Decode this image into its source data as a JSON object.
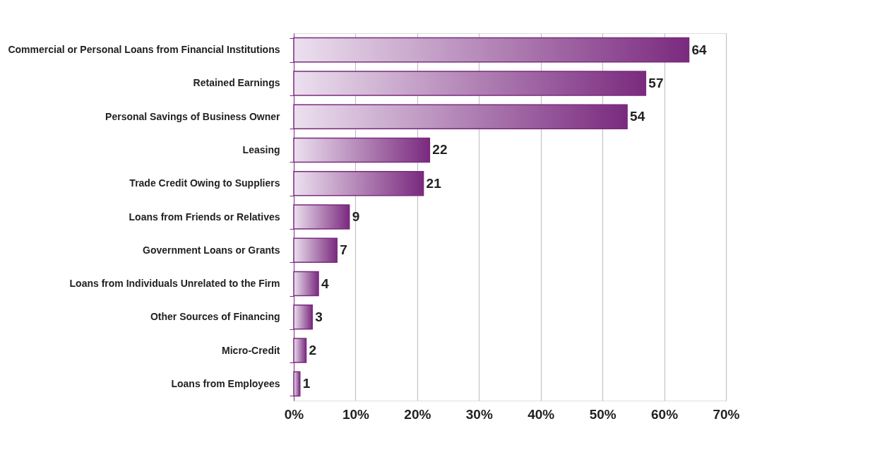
{
  "chart_data": {
    "type": "bar",
    "orientation": "horizontal",
    "categories": [
      "Commercial or Personal Loans from Financial Institutions",
      "Retained Earnings",
      "Personal Savings of Business Owner",
      "Leasing",
      "Trade Credit Owing to Suppliers",
      "Loans from Friends or Relatives",
      "Government Loans or Grants",
      "Loans from Individuals Unrelated to the Firm",
      "Other Sources of Financing",
      "Micro-Credit",
      "Loans from Employees"
    ],
    "values": [
      64,
      57,
      54,
      22,
      21,
      9,
      7,
      4,
      3,
      2,
      1
    ],
    "color": "#7a2a7e",
    "xlim": [
      0,
      70
    ],
    "xticks": [
      {
        "value": 0,
        "label": "0%"
      },
      {
        "value": 10,
        "label": "10%"
      },
      {
        "value": 20,
        "label": "20%"
      },
      {
        "value": 30,
        "label": "30%"
      },
      {
        "value": 40,
        "label": "40%"
      },
      {
        "value": 50,
        "label": "50%"
      },
      {
        "value": 60,
        "label": "60%"
      },
      {
        "value": 70,
        "label": "70%"
      }
    ],
    "grid": "x",
    "data_labels": true
  }
}
